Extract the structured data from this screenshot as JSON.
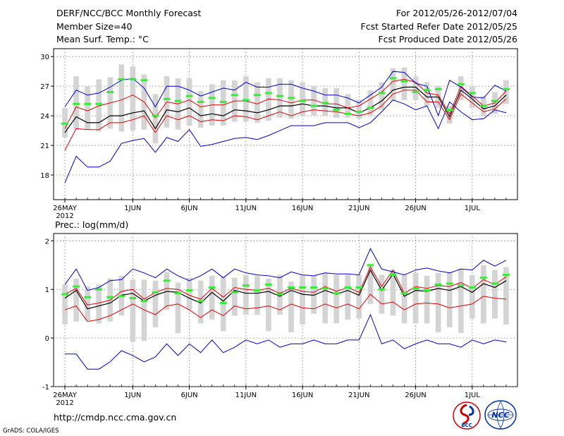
{
  "header": {
    "title": "DERF/NCC/BCC Monthly Forecast",
    "member_size": "Member Size=40",
    "variable": "Mean Surf. Temp.: °C",
    "forecast_period": "For 2012/05/26-2012/07/04",
    "started_refer": "Fcst Started Refer Date 2012/05/25",
    "produced": "Fcst Produced Date 2012/05/26"
  },
  "footer": {
    "url": "http://cmdp.ncc.cma.gov.cn",
    "grads": "GrADS: COLA/IGES"
  },
  "logos": {
    "left_label": "BCC",
    "right_label": "NCC"
  },
  "colors": {
    "median": "#000000",
    "spread_inner": "#e00000",
    "spread_outer": "#0000d0",
    "box": "#d4d4d4",
    "mean_marker": "#33ee33"
  },
  "chart_data": [
    {
      "type": "line",
      "title": "",
      "ylabel": "Mean Surf. Temp.: °C",
      "ylim": [
        15.5,
        30.8
      ],
      "yticks": [
        18,
        21,
        24,
        27,
        30
      ],
      "xlim": [
        -1,
        40
      ],
      "xticks": [
        0,
        6,
        11,
        16,
        21,
        26,
        31,
        36
      ],
      "xtick_labels": [
        "26MAY",
        "1JUN",
        "6JUN",
        "11JUN",
        "16JUN",
        "21JUN",
        "26JUN",
        "1JUL"
      ],
      "year_label": "2012",
      "days": 40,
      "series": [
        {
          "name": "min",
          "values": [
            17.2,
            19.9,
            18.8,
            18.8,
            19.4,
            21.2,
            21.5,
            21.7,
            20.3,
            21.8,
            21.4,
            22.6,
            20.9,
            21.1,
            21.4,
            21.7,
            21.8,
            21.6,
            22.0,
            22.5,
            23.0,
            23.0,
            23.0,
            23.3,
            23.3,
            23.3,
            22.8,
            23.3,
            24.4,
            25.6,
            25.2,
            24.6,
            25.0,
            22.7,
            25.4,
            24.4,
            23.6,
            23.7,
            24.6,
            24.3,
            24.2,
            23.5,
            24.1
          ]
        },
        {
          "name": "lower",
          "values": [
            20.5,
            22.7,
            22.6,
            22.6,
            23.3,
            23.3,
            23.6,
            24.0,
            22.3,
            24.0,
            23.6,
            24.0,
            23.4,
            23.6,
            23.5,
            24.0,
            23.9,
            23.6,
            24.0,
            24.4,
            24.0,
            24.4,
            24.6,
            24.5,
            24.4,
            24.2,
            24.0,
            24.3,
            25.0,
            26.2,
            26.6,
            26.6,
            25.4,
            25.4,
            23.6,
            26.2,
            25.3,
            24.4,
            24.7,
            25.7,
            25.2,
            25.3,
            24.3,
            25.1
          ]
        },
        {
          "name": "median",
          "values": [
            22.3,
            23.9,
            23.3,
            23.3,
            24.0,
            24.0,
            24.3,
            24.5,
            22.7,
            24.6,
            24.4,
            24.8,
            24.0,
            24.2,
            24.0,
            24.6,
            24.5,
            24.3,
            24.6,
            25.0,
            25.0,
            25.2,
            25.0,
            25.0,
            24.8,
            24.8,
            24.3,
            24.8,
            25.5,
            26.6,
            26.9,
            26.9,
            25.9,
            25.9,
            23.9,
            26.6,
            25.7,
            24.7,
            25.0,
            26.1,
            25.5,
            25.6,
            24.6,
            25.5
          ]
        },
        {
          "name": "upper",
          "values": [
            22.7,
            24.9,
            24.5,
            25.0,
            25.3,
            25.6,
            26.1,
            25.4,
            23.8,
            25.4,
            25.2,
            25.6,
            24.9,
            25.1,
            25.1,
            25.5,
            25.5,
            25.2,
            25.7,
            25.6,
            25.3,
            25.6,
            25.6,
            25.2,
            25.2,
            24.8,
            25.0,
            25.7,
            26.4,
            27.5,
            27.7,
            27.4,
            26.3,
            26.1,
            24.2,
            27.0,
            26.0,
            25.0,
            25.3,
            26.5,
            26.0,
            25.9,
            24.8,
            25.8
          ]
        },
        {
          "name": "max",
          "values": [
            24.9,
            26.6,
            26.1,
            26.3,
            26.9,
            27.6,
            27.8,
            26.8,
            24.9,
            27.0,
            27.0,
            26.6,
            26.0,
            26.4,
            26.8,
            26.6,
            27.4,
            26.9,
            26.9,
            27.2,
            27.2,
            26.8,
            26.5,
            26.1,
            26.1,
            25.8,
            25.3,
            26.1,
            26.9,
            28.5,
            28.4,
            27.3,
            27.0,
            24.0,
            27.6,
            26.9,
            25.9,
            25.8,
            27.1,
            26.5,
            26.6,
            25.2,
            26.4
          ]
        }
      ],
      "boxes": {
        "low": [
          21.8,
          22.6,
          22.6,
          22.4,
          22.7,
          22.4,
          22.5,
          22.6,
          21.2,
          22.8,
          22.6,
          23.0,
          22.8,
          23.0,
          23.0,
          23.4,
          23.4,
          23.3,
          23.5,
          23.8,
          23.7,
          24.0,
          24.0,
          24.0,
          23.8,
          23.8,
          23.7,
          24.0,
          24.6,
          25.5,
          25.6,
          25.6,
          25.0,
          24.8,
          23.2,
          25.6,
          24.8,
          24.0,
          24.2,
          25.2,
          24.6,
          24.8,
          23.8,
          24.6
        ],
        "high": [
          24.8,
          28.0,
          27.0,
          27.7,
          27.9,
          29.2,
          29.0,
          28.2,
          26.2,
          28.0,
          27.8,
          27.8,
          26.5,
          27.2,
          27.6,
          27.6,
          28.0,
          27.4,
          27.8,
          27.8,
          27.6,
          27.4,
          27.0,
          26.8,
          26.8,
          26.2,
          25.6,
          26.6,
          27.4,
          28.8,
          28.9,
          28.0,
          27.4,
          27.0,
          25.0,
          28.0,
          27.0,
          26.0,
          26.4,
          27.6,
          27.2,
          27.4,
          25.8,
          26.8
        ]
      },
      "mean": [
        23.2,
        25.2,
        25.2,
        25.2,
        26.4,
        27.7,
        27.7,
        27.6,
        24.0,
        25.7,
        25.5,
        26.0,
        25.4,
        25.8,
        25.4,
        26.1,
        25.6,
        26.1,
        26.3,
        26.0,
        25.8,
        25.5,
        25.0,
        25.3,
        24.6,
        24.2,
        24.4,
        24.8,
        26.3,
        27.8,
        27.5,
        26.4,
        26.6,
        26.7,
        24.6,
        27.2,
        26.3,
        25.0,
        25.5,
        26.7,
        26.2,
        26.2,
        25.0,
        25.8
      ]
    },
    {
      "type": "line",
      "title": "Prec.: log(mm/d)",
      "ylabel": "Prec.: log(mm/d)",
      "ylim": [
        -1,
        2.15
      ],
      "yticks": [
        -1,
        0,
        1,
        2
      ],
      "xlim": [
        -1,
        40
      ],
      "xticks": [
        0,
        6,
        11,
        16,
        21,
        26,
        31,
        36
      ],
      "xtick_labels": [
        "26MAY",
        "1JUN",
        "6JUN",
        "11JUN",
        "16JUN",
        "21JUN",
        "26JUN",
        "1JUL"
      ],
      "year_label": "2012",
      "days": 40,
      "series": [
        {
          "name": "min",
          "values": [
            -0.33,
            -0.33,
            -0.64,
            -0.64,
            -0.49,
            -0.26,
            -0.36,
            -0.49,
            -0.39,
            -0.12,
            -0.36,
            -0.12,
            -0.3,
            -0.04,
            -0.3,
            -0.19,
            -0.04,
            -0.12,
            -0.04,
            -0.19,
            -0.12,
            -0.12,
            -0.04,
            -0.12,
            -0.12,
            -0.04,
            -0.04,
            0.48,
            -0.12,
            -0.04,
            -0.22,
            -0.12,
            -0.04,
            -0.12,
            -0.12,
            -0.19,
            -0.04,
            -0.12,
            -0.04,
            -0.08
          ]
        },
        {
          "name": "lower",
          "values": [
            0.58,
            0.66,
            0.34,
            0.38,
            0.46,
            0.58,
            0.7,
            0.58,
            0.48,
            0.66,
            0.7,
            0.58,
            0.42,
            0.58,
            0.46,
            0.66,
            0.6,
            0.62,
            0.66,
            0.58,
            0.7,
            0.62,
            0.6,
            0.7,
            0.62,
            0.7,
            0.6,
            0.9,
            0.7,
            0.74,
            0.58,
            0.7,
            0.72,
            0.7,
            0.62,
            0.66,
            0.7,
            0.86,
            0.82,
            0.8
          ]
        },
        {
          "name": "median",
          "values": [
            0.82,
            0.98,
            0.6,
            0.66,
            0.72,
            0.88,
            0.92,
            0.76,
            0.88,
            0.96,
            0.94,
            0.82,
            0.72,
            0.94,
            0.76,
            0.98,
            0.92,
            0.92,
            0.96,
            0.86,
            0.98,
            0.9,
            0.88,
            0.98,
            0.9,
            0.98,
            0.88,
            1.4,
            0.98,
            1.32,
            0.86,
            0.98,
            0.96,
            1.02,
            0.98,
            1.06,
            0.94,
            1.12,
            1.04,
            1.18,
            1.0
          ]
        },
        {
          "name": "upper",
          "values": [
            0.9,
            1.02,
            0.68,
            0.72,
            0.78,
            0.96,
            1.0,
            0.8,
            0.94,
            1.02,
            1.0,
            0.88,
            0.8,
            1.02,
            0.84,
            1.04,
            1.0,
            0.98,
            1.02,
            0.92,
            1.02,
            0.96,
            0.94,
            1.06,
            0.96,
            1.04,
            0.94,
            1.46,
            1.06,
            1.4,
            0.92,
            1.06,
            1.02,
            1.08,
            1.06,
            1.14,
            1.02,
            1.2,
            1.1,
            1.26,
            1.06
          ]
        },
        {
          "name": "max",
          "values": [
            1.1,
            1.42,
            0.98,
            1.04,
            1.18,
            1.2,
            1.42,
            1.34,
            1.24,
            1.42,
            1.28,
            1.18,
            1.28,
            1.42,
            1.24,
            1.42,
            1.34,
            1.3,
            1.28,
            1.24,
            1.36,
            1.3,
            1.28,
            1.34,
            1.32,
            1.32,
            1.3,
            1.84,
            1.42,
            1.36,
            1.3,
            1.4,
            1.44,
            1.38,
            1.34,
            1.42,
            1.4,
            1.6,
            1.48,
            1.6,
            1.5
          ]
        }
      ],
      "boxes": {
        "low": [
          0.28,
          0.34,
          0.36,
          0.3,
          0.34,
          0.46,
          -0.08,
          -0.06,
          0.22,
          0.58,
          0.1,
          0.58,
          0.3,
          0.38,
          0.14,
          0.46,
          0.48,
          0.48,
          0.14,
          0.48,
          0.12,
          0.28,
          0.5,
          0.3,
          0.3,
          0.38,
          0.4,
          0.7,
          0.5,
          0.46,
          0.3,
          0.3,
          0.3,
          0.12,
          0.22,
          0.1,
          0.4,
          0.3,
          0.4,
          0.28,
          0.26,
          0.38,
          0.28,
          0.18
        ],
        "high": [
          1.1,
          1.22,
          1.06,
          1.1,
          1.22,
          1.28,
          1.2,
          1.2,
          1.18,
          1.36,
          1.14,
          1.24,
          1.18,
          1.28,
          1.26,
          1.24,
          1.3,
          1.28,
          1.22,
          1.3,
          1.16,
          1.3,
          1.28,
          1.34,
          1.3,
          1.3,
          1.3,
          1.5,
          1.3,
          1.4,
          1.3,
          1.34,
          1.28,
          1.34,
          1.36,
          1.42,
          1.3,
          1.5,
          1.4,
          1.46,
          1.4,
          1.42,
          1.4,
          1.4
        ]
      },
      "mean": [
        0.9,
        1.06,
        0.84,
        1.0,
        0.84,
        0.86,
        0.82,
        0.76,
        0.94,
        1.18,
        0.92,
        0.98,
        0.76,
        1.04,
        0.72,
        0.94,
        1.08,
        0.98,
        1.1,
        0.9,
        1.04,
        1.04,
        1.04,
        1.02,
        0.92,
        1.04,
        1.04,
        1.5,
        1.0,
        1.3,
        0.92,
        1.02,
        0.98,
        1.1,
        1.12,
        1.08,
        1.04,
        1.24,
        1.12,
        1.3,
        1.24
      ]
    }
  ]
}
